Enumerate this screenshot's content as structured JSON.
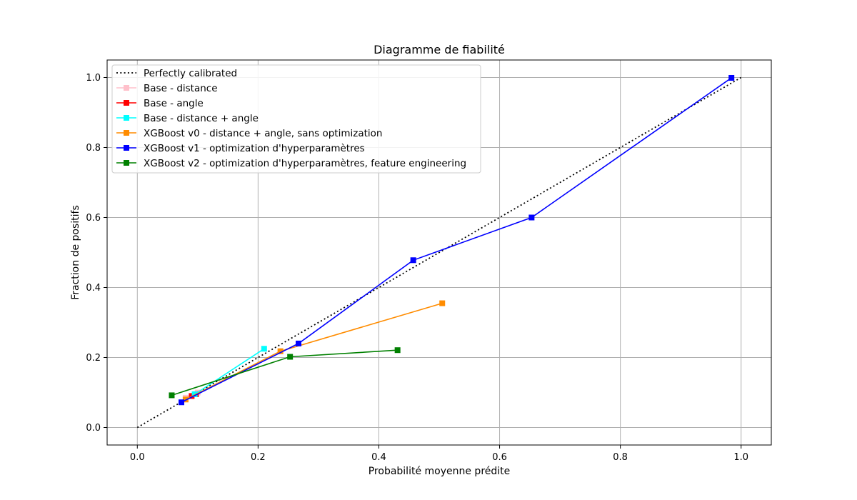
{
  "chart_data": {
    "type": "line",
    "title": "Diagramme de fiabilité",
    "xlabel": "Probabilité moyenne prédite",
    "ylabel": "Fraction de positifs",
    "xlim": [
      -0.05,
      1.05
    ],
    "ylim": [
      -0.05,
      1.05
    ],
    "xticks": [
      0.0,
      0.2,
      0.4,
      0.6,
      0.8,
      1.0
    ],
    "yticks": [
      0.0,
      0.2,
      0.4,
      0.6,
      0.8,
      1.0
    ],
    "xtick_labels": [
      "0.0",
      "0.2",
      "0.4",
      "0.6",
      "0.8",
      "1.0"
    ],
    "ytick_labels": [
      "0.0",
      "0.2",
      "0.4",
      "0.6",
      "0.8",
      "1.0"
    ],
    "grid": true,
    "legend_position": "top-left",
    "series": [
      {
        "name": "Perfectly calibrated",
        "color": "#000000",
        "style": "dotted",
        "marker": "none",
        "x": [
          0.0,
          1.0
        ],
        "y": [
          0.0,
          1.0
        ]
      },
      {
        "name": "Base - distance",
        "color": "#ffc0cb",
        "style": "solid",
        "marker": "square",
        "x": [
          0.08,
          0.1
        ],
        "y": [
          0.085,
          0.1
        ]
      },
      {
        "name": "Base - angle",
        "color": "#ff0000",
        "style": "solid",
        "marker": "square",
        "x": [
          0.09,
          0.097
        ],
        "y": [
          0.09,
          0.095
        ]
      },
      {
        "name": "Base - distance + angle",
        "color": "#00ffff",
        "style": "solid",
        "marker": "square",
        "x": [
          0.095,
          0.21
        ],
        "y": [
          0.095,
          0.225
        ]
      },
      {
        "name": "XGBoost v0 - distance + angle, sans optimization",
        "color": "#ff8c00",
        "style": "solid",
        "marker": "square",
        "x": [
          0.08,
          0.237,
          0.505
        ],
        "y": [
          0.08,
          0.218,
          0.355
        ]
      },
      {
        "name": "XGBoost v1 - optimization d'hyperparamètres",
        "color": "#0000ff",
        "style": "solid",
        "marker": "square",
        "x": [
          0.073,
          0.267,
          0.457,
          0.653,
          0.984
        ],
        "y": [
          0.072,
          0.24,
          0.478,
          0.6,
          0.999
        ]
      },
      {
        "name": "XGBoost v2 - optimization d'hyperparamètres, feature engineering",
        "color": "#008000",
        "style": "solid",
        "marker": "square",
        "x": [
          0.057,
          0.253,
          0.431
        ],
        "y": [
          0.092,
          0.202,
          0.221
        ]
      }
    ]
  }
}
